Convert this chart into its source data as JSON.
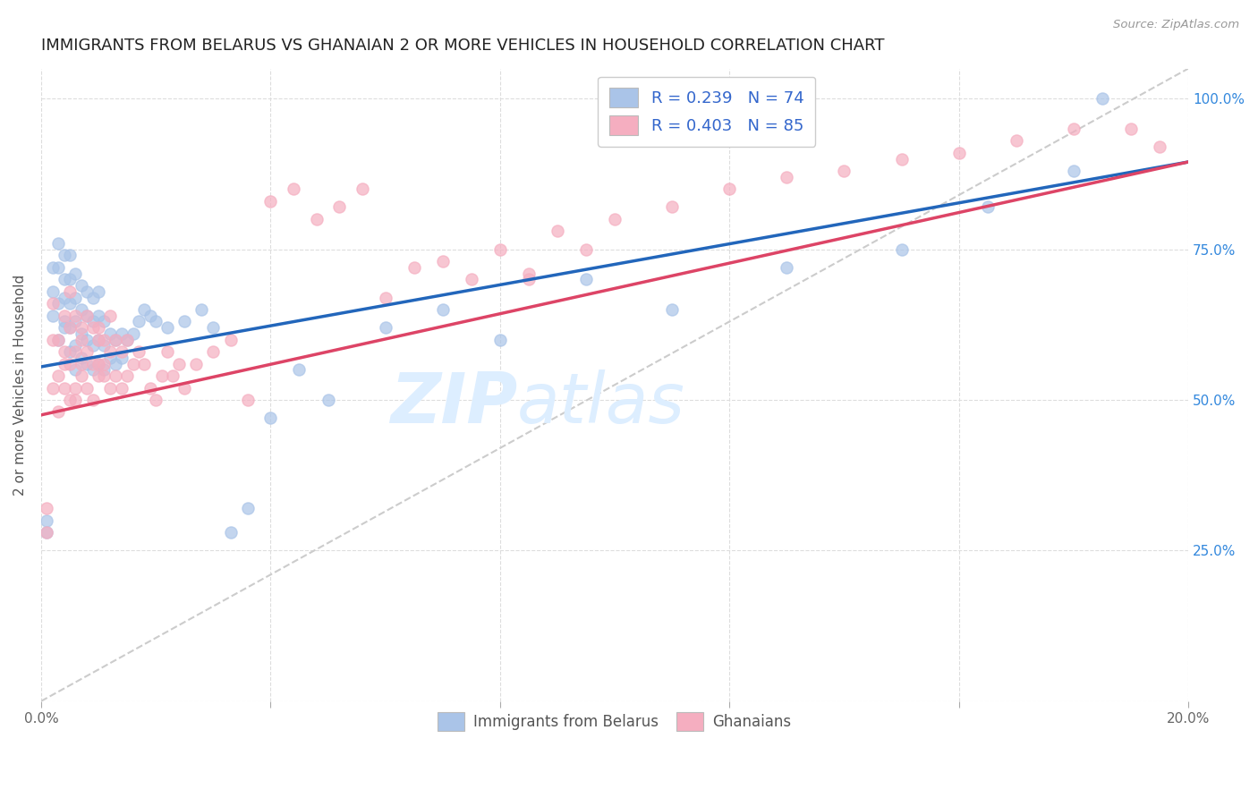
{
  "title": "IMMIGRANTS FROM BELARUS VS GHANAIAN 2 OR MORE VEHICLES IN HOUSEHOLD CORRELATION CHART",
  "source": "Source: ZipAtlas.com",
  "ylabel": "2 or more Vehicles in Household",
  "xlim": [
    0.0,
    0.2
  ],
  "ylim": [
    0.0,
    1.05
  ],
  "x_tick_positions": [
    0.0,
    0.04,
    0.08,
    0.12,
    0.16,
    0.2
  ],
  "x_tick_labels": [
    "0.0%",
    "",
    "",
    "",
    "",
    "20.0%"
  ],
  "y_tick_positions": [
    0.0,
    0.25,
    0.5,
    0.75,
    1.0
  ],
  "y_tick_labels_right": [
    "",
    "25.0%",
    "50.0%",
    "75.0%",
    "100.0%"
  ],
  "legend_blue_label": "R = 0.239   N = 74",
  "legend_pink_label": "R = 0.403   N = 85",
  "legend_blue_color": "#aac4e8",
  "legend_pink_color": "#f5aec0",
  "scatter_blue_color": "#aac4e8",
  "scatter_pink_color": "#f5aec0",
  "trend_blue_color": "#2266bb",
  "trend_pink_color": "#dd4466",
  "trend_dashed_color": "#cccccc",
  "watermark_zip": "ZIP",
  "watermark_atlas": "atlas",
  "watermark_color": "#ddeeff",
  "bottom_legend_blue": "Immigrants from Belarus",
  "bottom_legend_pink": "Ghanaians",
  "blue_trend": [
    0.0,
    0.2,
    0.555,
    0.895
  ],
  "pink_trend": [
    0.0,
    0.2,
    0.475,
    0.895
  ],
  "diag_line": [
    0.0,
    0.2,
    0.0,
    1.05
  ],
  "blue_x": [
    0.001,
    0.001,
    0.002,
    0.002,
    0.002,
    0.003,
    0.003,
    0.003,
    0.003,
    0.004,
    0.004,
    0.004,
    0.004,
    0.004,
    0.005,
    0.005,
    0.005,
    0.005,
    0.005,
    0.006,
    0.006,
    0.006,
    0.006,
    0.006,
    0.007,
    0.007,
    0.007,
    0.007,
    0.008,
    0.008,
    0.008,
    0.008,
    0.009,
    0.009,
    0.009,
    0.009,
    0.01,
    0.01,
    0.01,
    0.01,
    0.011,
    0.011,
    0.011,
    0.012,
    0.012,
    0.013,
    0.013,
    0.014,
    0.014,
    0.015,
    0.016,
    0.017,
    0.018,
    0.019,
    0.02,
    0.022,
    0.025,
    0.028,
    0.03,
    0.033,
    0.036,
    0.04,
    0.045,
    0.05,
    0.06,
    0.07,
    0.08,
    0.095,
    0.11,
    0.13,
    0.15,
    0.165,
    0.18,
    0.185
  ],
  "blue_y": [
    0.3,
    0.28,
    0.68,
    0.72,
    0.64,
    0.6,
    0.66,
    0.72,
    0.76,
    0.63,
    0.67,
    0.7,
    0.74,
    0.62,
    0.58,
    0.62,
    0.66,
    0.7,
    0.74,
    0.55,
    0.59,
    0.63,
    0.67,
    0.71,
    0.57,
    0.61,
    0.65,
    0.69,
    0.56,
    0.6,
    0.64,
    0.68,
    0.55,
    0.59,
    0.63,
    0.67,
    0.56,
    0.6,
    0.64,
    0.68,
    0.55,
    0.59,
    0.63,
    0.57,
    0.61,
    0.56,
    0.6,
    0.57,
    0.61,
    0.6,
    0.61,
    0.63,
    0.65,
    0.64,
    0.63,
    0.62,
    0.63,
    0.65,
    0.62,
    0.28,
    0.32,
    0.47,
    0.55,
    0.5,
    0.62,
    0.65,
    0.6,
    0.7,
    0.65,
    0.72,
    0.75,
    0.82,
    0.88,
    1.0
  ],
  "pink_x": [
    0.001,
    0.001,
    0.002,
    0.002,
    0.002,
    0.003,
    0.003,
    0.003,
    0.004,
    0.004,
    0.004,
    0.004,
    0.005,
    0.005,
    0.005,
    0.005,
    0.006,
    0.006,
    0.006,
    0.006,
    0.007,
    0.007,
    0.007,
    0.007,
    0.008,
    0.008,
    0.008,
    0.009,
    0.009,
    0.009,
    0.01,
    0.01,
    0.01,
    0.01,
    0.011,
    0.011,
    0.011,
    0.012,
    0.012,
    0.012,
    0.013,
    0.013,
    0.014,
    0.014,
    0.015,
    0.015,
    0.016,
    0.017,
    0.018,
    0.019,
    0.02,
    0.021,
    0.022,
    0.023,
    0.024,
    0.025,
    0.027,
    0.03,
    0.033,
    0.036,
    0.04,
    0.044,
    0.048,
    0.052,
    0.056,
    0.06,
    0.065,
    0.07,
    0.075,
    0.08,
    0.085,
    0.09,
    0.095,
    0.1,
    0.11,
    0.12,
    0.13,
    0.14,
    0.15,
    0.16,
    0.17,
    0.18,
    0.19,
    0.195,
    0.085
  ],
  "pink_y": [
    0.28,
    0.32,
    0.6,
    0.52,
    0.66,
    0.48,
    0.54,
    0.6,
    0.52,
    0.58,
    0.64,
    0.56,
    0.5,
    0.56,
    0.62,
    0.68,
    0.52,
    0.58,
    0.64,
    0.5,
    0.54,
    0.6,
    0.56,
    0.62,
    0.52,
    0.58,
    0.64,
    0.5,
    0.56,
    0.62,
    0.54,
    0.6,
    0.56,
    0.62,
    0.54,
    0.6,
    0.56,
    0.52,
    0.58,
    0.64,
    0.54,
    0.6,
    0.52,
    0.58,
    0.54,
    0.6,
    0.56,
    0.58,
    0.56,
    0.52,
    0.5,
    0.54,
    0.58,
    0.54,
    0.56,
    0.52,
    0.56,
    0.58,
    0.6,
    0.5,
    0.83,
    0.85,
    0.8,
    0.82,
    0.85,
    0.67,
    0.72,
    0.73,
    0.7,
    0.75,
    0.71,
    0.78,
    0.75,
    0.8,
    0.82,
    0.85,
    0.87,
    0.88,
    0.9,
    0.91,
    0.93,
    0.95,
    0.95,
    0.92,
    0.7
  ]
}
